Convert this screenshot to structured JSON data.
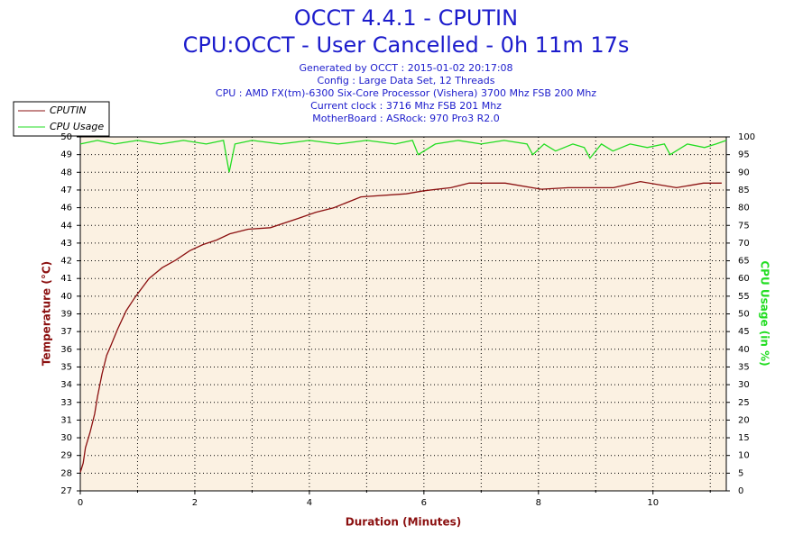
{
  "chart_data": {
    "type": "line",
    "title": "OCCT 4.4.1 - CPUTIN",
    "subtitle": "CPU:OCCT - User Cancelled - 0h 11m 17s",
    "info_lines": [
      "Generated by OCCT : 2015-01-02 20:17:08",
      "Config : Large Data Set, 12 Threads",
      "CPU : AMD FX(tm)-6300 Six-Core Processor (Vishera) 3700 Mhz FSB 200 Mhz",
      "Current clock : 3716 Mhz FSB 201 Mhz",
      "MotherBoard : ASRock: 970 Pro3 R2.0"
    ],
    "x_label": "Duration (Minutes)",
    "y_label": "Temperature (°C)",
    "y2_label": "CPU Usage (in %)",
    "xlim": [
      0,
      11.28
    ],
    "xticks": [
      0,
      2,
      4,
      6,
      8,
      10
    ],
    "x_minor_ticks": [
      1,
      3,
      5,
      7,
      9,
      11
    ],
    "ylim": [
      27,
      50
    ],
    "yticks": [
      {
        "value": 27,
        "label": "27"
      },
      {
        "value": 28.15,
        "label": "28"
      },
      {
        "value": 29.3,
        "label": "29"
      },
      {
        "value": 30.45,
        "label": "30"
      },
      {
        "value": 31.6,
        "label": "31"
      },
      {
        "value": 32.75,
        "label": "33"
      },
      {
        "value": 33.9,
        "label": "34"
      },
      {
        "value": 35.05,
        "label": "35"
      },
      {
        "value": 36.2,
        "label": "36"
      },
      {
        "value": 37.35,
        "label": "37"
      },
      {
        "value": 38.5,
        "label": "39"
      },
      {
        "value": 39.65,
        "label": "40"
      },
      {
        "value": 40.8,
        "label": "41"
      },
      {
        "value": 41.95,
        "label": "42"
      },
      {
        "value": 43.1,
        "label": "43"
      },
      {
        "value": 44.25,
        "label": "44"
      },
      {
        "value": 45.4,
        "label": "46"
      },
      {
        "value": 46.55,
        "label": "47"
      },
      {
        "value": 47.7,
        "label": "48"
      },
      {
        "value": 48.85,
        "label": "49"
      },
      {
        "value": 50,
        "label": "50"
      }
    ],
    "y2lim": [
      0,
      100
    ],
    "y2ticks": [
      0,
      5,
      10,
      15,
      20,
      25,
      30,
      35,
      40,
      45,
      50,
      55,
      60,
      65,
      70,
      75,
      80,
      85,
      90,
      95,
      100
    ],
    "grid": true,
    "legend": "top-left",
    "series": [
      {
        "name": "CPUTIN",
        "color": "#8b1010",
        "x": [
          0,
          0.05,
          0.09,
          0.17,
          0.25,
          0.3,
          0.38,
          0.46,
          0.54,
          0.65,
          0.8,
          0.96,
          1.2,
          1.43,
          1.67,
          1.91,
          2.14,
          2.38,
          2.61,
          2.93,
          3.32,
          3.8,
          4.11,
          4.43,
          4.9,
          5.69,
          6.0,
          6.47,
          6.79,
          7.42,
          8.05,
          8.52,
          9.31,
          9.78,
          10.41,
          10.88,
          11.2
        ],
        "values": [
          28.2,
          28.8,
          29.8,
          30.8,
          32.0,
          33.1,
          34.6,
          35.8,
          36.5,
          37.5,
          38.7,
          39.6,
          40.8,
          41.5,
          42.0,
          42.6,
          43.0,
          43.3,
          43.7,
          44.0,
          44.1,
          44.7,
          45.1,
          45.4,
          46.1,
          46.3,
          46.5,
          46.7,
          47.0,
          47.0,
          46.6,
          46.7,
          46.7,
          47.1,
          46.7,
          47.0,
          47.0
        ]
      },
      {
        "name": "CPU Usage",
        "color": "#22dd22",
        "axis": "y2",
        "x": [
          0,
          0.3,
          0.6,
          1.0,
          1.4,
          1.8,
          2.2,
          2.5,
          2.6,
          2.7,
          3.0,
          3.5,
          4.0,
          4.5,
          5.0,
          5.5,
          5.8,
          5.9,
          6.2,
          6.6,
          7.0,
          7.4,
          7.8,
          7.9,
          8.1,
          8.3,
          8.6,
          8.8,
          8.9,
          9.1,
          9.3,
          9.6,
          9.9,
          10.2,
          10.3,
          10.6,
          10.9,
          11.1,
          11.28
        ],
        "values": [
          98,
          99,
          98,
          99,
          98,
          99,
          98,
          99,
          90,
          98,
          99,
          98,
          99,
          98,
          99,
          98,
          99,
          95,
          98,
          99,
          98,
          99,
          98,
          95,
          98,
          96,
          98,
          97,
          94,
          98,
          96,
          98,
          97,
          98,
          95,
          98,
          97,
          98,
          99
        ]
      }
    ]
  }
}
